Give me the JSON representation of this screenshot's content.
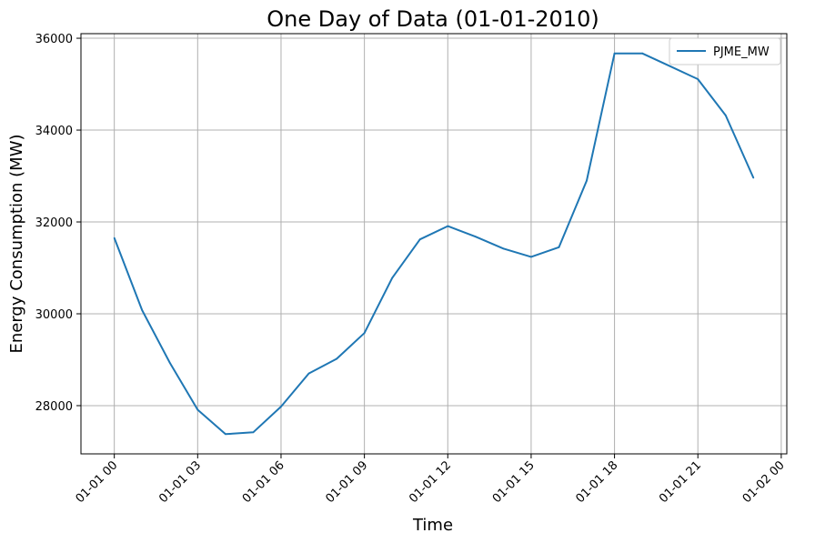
{
  "chart_data": {
    "type": "line",
    "title": "One Day of Data (01-01-2010)",
    "xlabel": "Time",
    "ylabel": "Energy Consumption (MW)",
    "x_ticks": [
      "01-01 00",
      "01-01 03",
      "01-01 06",
      "01-01 09",
      "01-01 12",
      "01-01 15",
      "01-01 18",
      "01-01 21",
      "01-02 00"
    ],
    "x_tick_hours": [
      0,
      3,
      6,
      9,
      12,
      15,
      18,
      21,
      24
    ],
    "y_ticks": [
      28000,
      30000,
      32000,
      34000,
      36000
    ],
    "xlim_hours": [
      -1.2,
      24.2
    ],
    "ylim": [
      26950,
      36100
    ],
    "grid": true,
    "legend_position": "upper right",
    "series": [
      {
        "name": "PJME_MW",
        "color": "#1f77b4",
        "x_hours": [
          0,
          1,
          2,
          3,
          4,
          5,
          6,
          7,
          8,
          9,
          10,
          11,
          12,
          13,
          14,
          15,
          16,
          17,
          18,
          19,
          20,
          21,
          22,
          23
        ],
        "values": [
          31650,
          30080,
          28930,
          27910,
          27380,
          27420,
          27980,
          28700,
          29020,
          29580,
          30780,
          31620,
          31910,
          31680,
          31420,
          31240,
          31450,
          32900,
          35670,
          35670,
          35390,
          35110,
          34320,
          32960
        ]
      }
    ]
  }
}
